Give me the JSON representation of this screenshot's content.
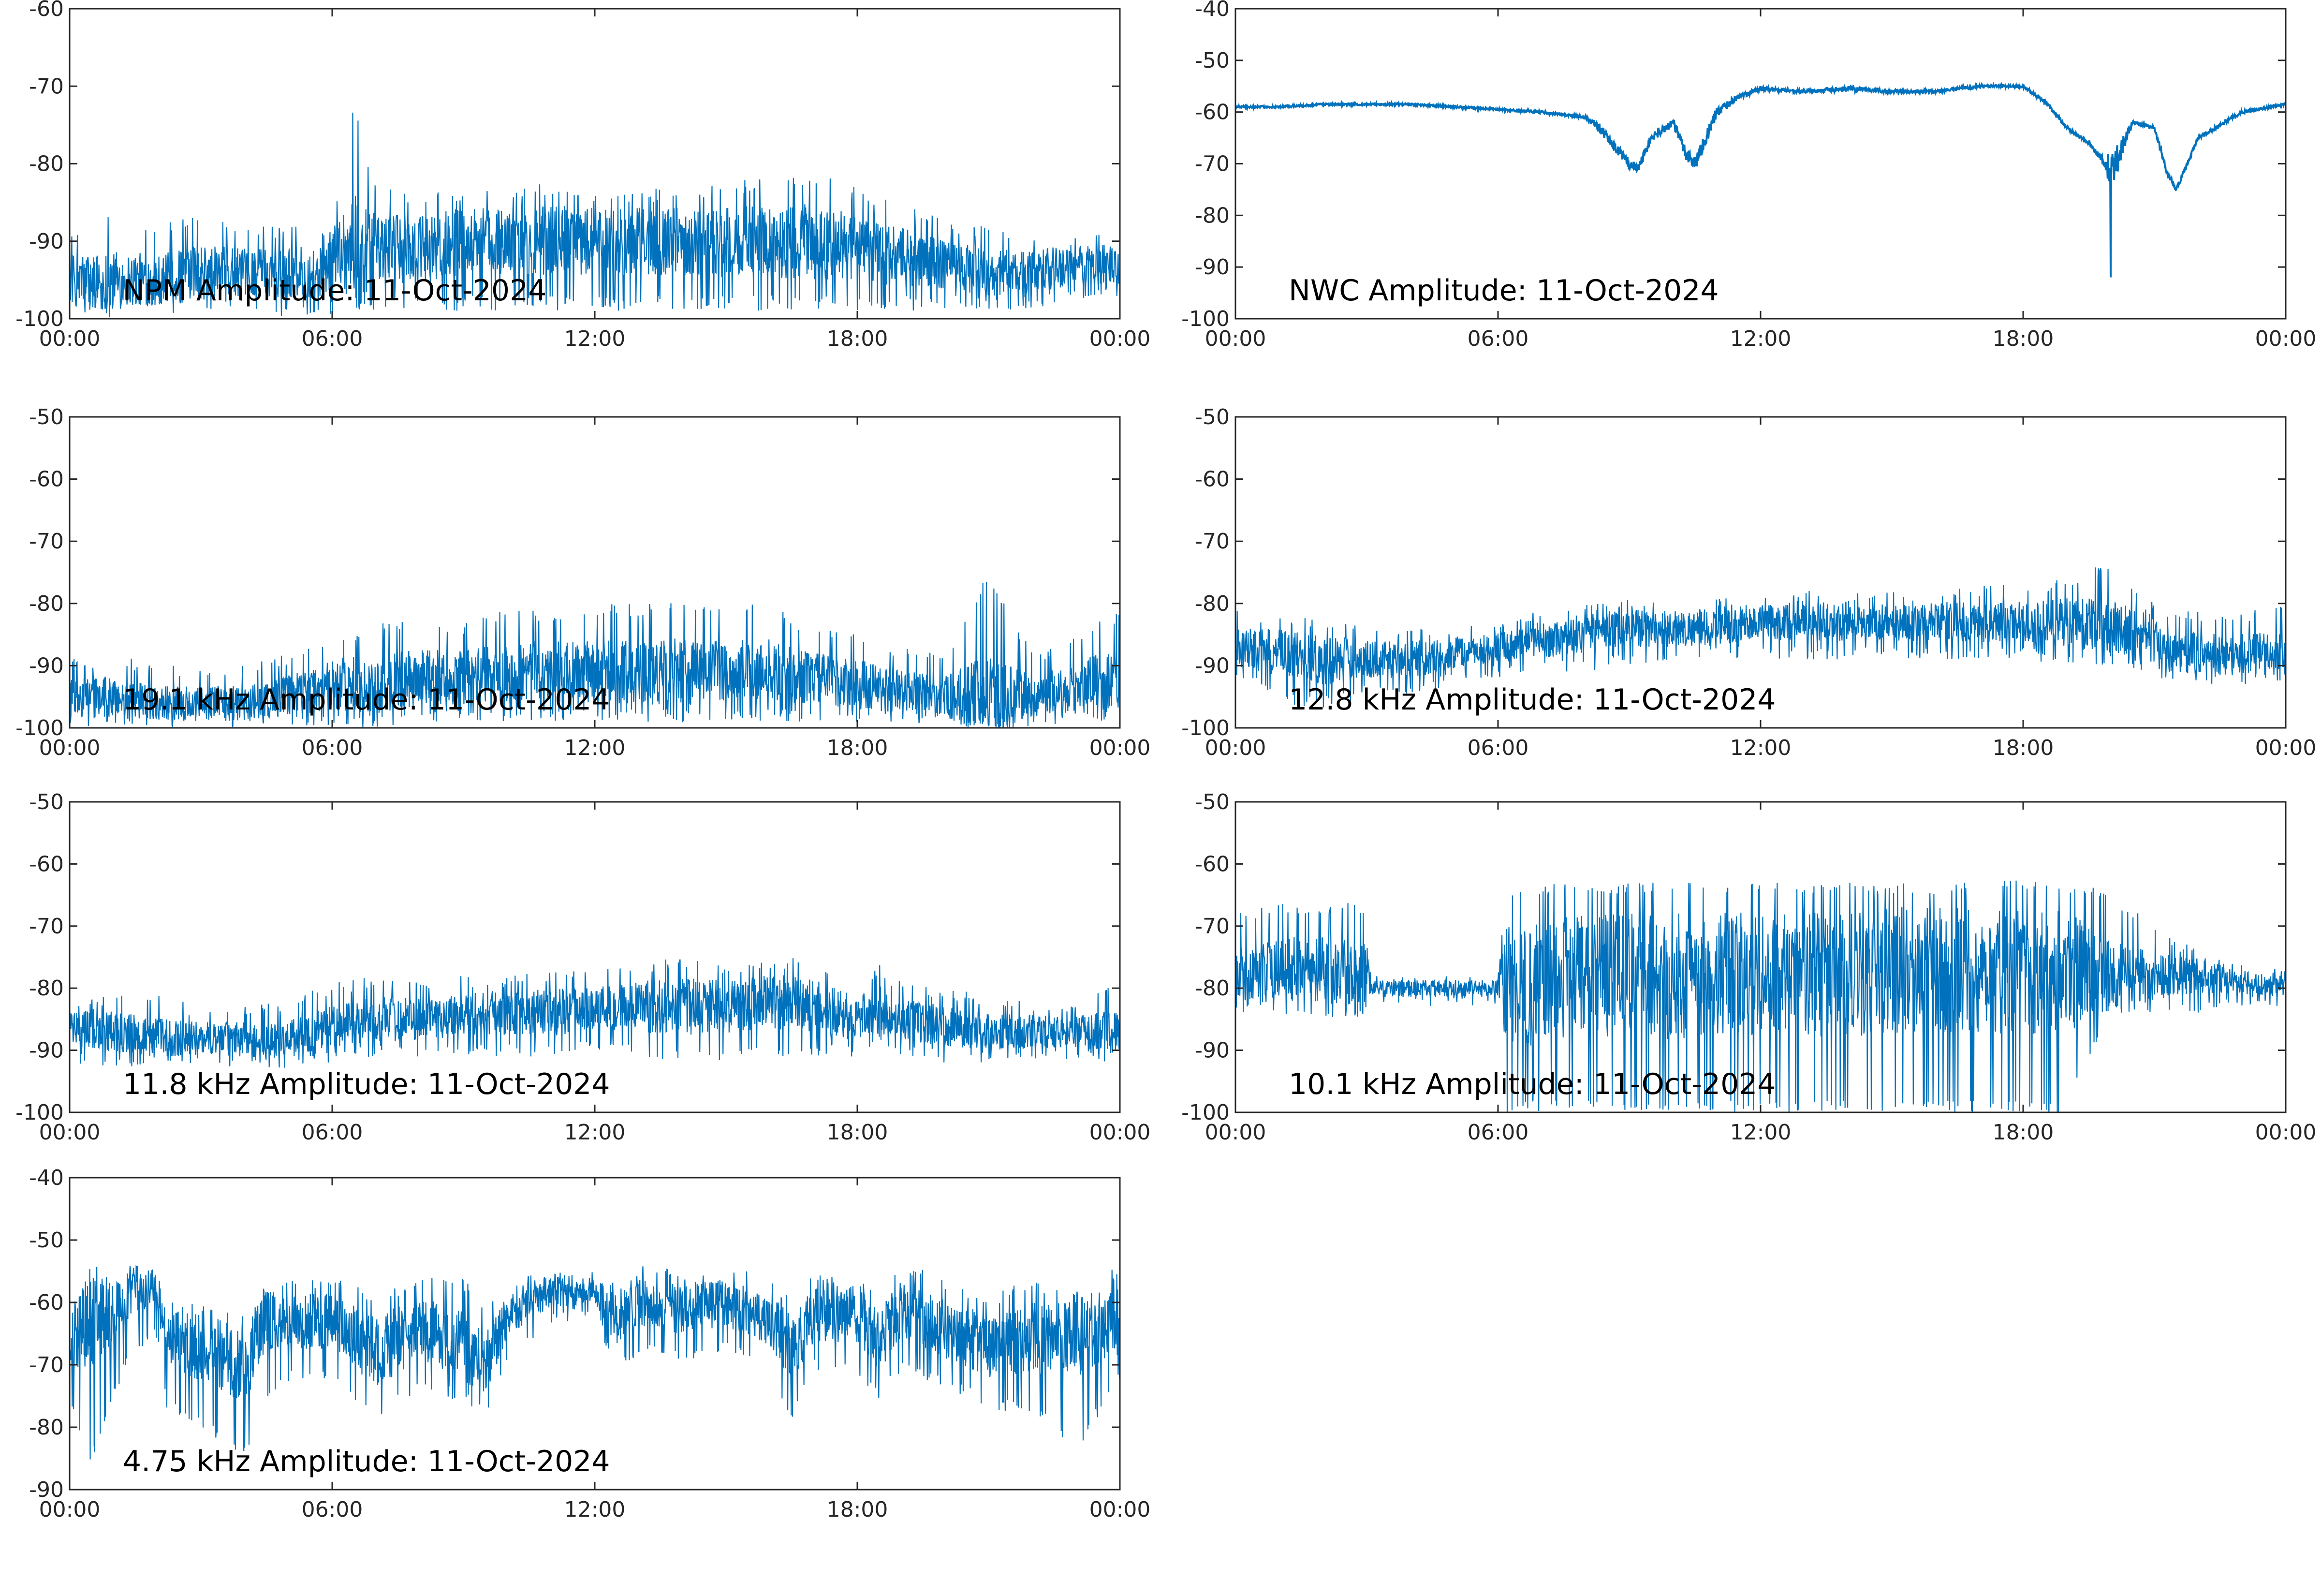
{
  "figure": {
    "line_color": "#0072bd",
    "axis_color": "#262626",
    "background": "#ffffff"
  },
  "chart_data": [
    {
      "type": "line",
      "id": "npm",
      "title": "NPM Amplitude: 11-Oct-2024",
      "xlabel": "",
      "ylabel": "",
      "x_ticks": [
        "00:00",
        "06:00",
        "12:00",
        "18:00",
        "00:00"
      ],
      "xlim_hours": [
        0,
        24
      ],
      "ylim": [
        -100,
        -60
      ],
      "y_ticks": [
        -100,
        -90,
        -80,
        -70,
        -60
      ],
      "grid": false,
      "series": [
        {
          "x_hours": [
            0,
            1,
            2,
            3,
            4,
            5,
            5.8,
            6.1,
            6.5,
            7,
            8,
            9,
            10,
            11,
            12,
            13,
            14,
            15,
            16,
            17,
            18,
            19,
            20,
            21,
            22,
            23,
            24
          ],
          "mean": [
            -95,
            -95,
            -95,
            -94,
            -94,
            -94,
            -94,
            -91,
            -91,
            -91,
            -91,
            -90,
            -90,
            -90,
            -90,
            -90,
            -90,
            -90,
            -90,
            -90,
            -91,
            -92,
            -93,
            -94,
            -94,
            -93,
            -93
          ],
          "high": [
            -88,
            -86,
            -88,
            -86,
            -88,
            -88,
            -88,
            -84,
            -72,
            -83,
            -83,
            -83,
            -83,
            -82,
            -83,
            -83,
            -83,
            -82,
            -82,
            -81,
            -83,
            -85,
            -87,
            -88,
            -89,
            -88,
            -89
          ],
          "low": [
            -100,
            -100,
            -100,
            -99,
            -99,
            -100,
            -100,
            -99,
            -99,
            -99,
            -99,
            -99,
            -99,
            -99,
            -99,
            -99,
            -99,
            -99,
            -99,
            -99,
            -99,
            -99,
            -99,
            -99,
            -99,
            -98,
            -98
          ]
        }
      ]
    },
    {
      "type": "line",
      "id": "nwc",
      "title": "NWC Amplitude: 11-Oct-2024",
      "xlabel": "",
      "ylabel": "",
      "x_ticks": [
        "00:00",
        "06:00",
        "12:00",
        "18:00",
        "00:00"
      ],
      "xlim_hours": [
        0,
        24
      ],
      "ylim": [
        -100,
        -40
      ],
      "y_ticks": [
        -100,
        -90,
        -80,
        -70,
        -60,
        -50,
        -40
      ],
      "grid": false,
      "series": [
        {
          "x_hours": [
            0,
            1,
            2,
            3,
            4,
            5,
            6,
            7,
            7.5,
            8,
            8.3,
            8.6,
            9,
            9.2,
            9.5,
            10,
            10.3,
            10.5,
            11,
            11.5,
            12,
            13,
            14,
            15,
            16,
            17,
            18,
            18.5,
            19,
            19.5,
            19.8,
            20,
            20.5,
            21,
            21.3,
            21.5,
            22,
            23,
            24
          ],
          "mean": [
            -59,
            -59,
            -58.5,
            -58.5,
            -58.5,
            -59,
            -59.5,
            -60,
            -60.5,
            -61,
            -63,
            -66,
            -70,
            -71,
            -65,
            -62,
            -68,
            -70,
            -60,
            -57,
            -55.5,
            -56,
            -55.5,
            -56,
            -56,
            -55,
            -55,
            -58,
            -63,
            -66,
            -69,
            -72,
            -62,
            -63,
            -72,
            -75,
            -65,
            -60,
            -58.5
          ],
          "high": [
            -58.5,
            -58.5,
            -58,
            -58,
            -58,
            -58.5,
            -59,
            -59.5,
            -60,
            -60,
            -61,
            -63,
            -66,
            -67,
            -62,
            -59,
            -63,
            -64,
            -57,
            -55,
            -54.5,
            -55,
            -54,
            -55,
            -55,
            -54.5,
            -54.5,
            -57,
            -62,
            -65,
            -67,
            -69,
            -61,
            -62,
            -70,
            -73,
            -64,
            -59,
            -58
          ],
          "low": [
            -59.5,
            -59.5,
            -59,
            -59,
            -59,
            -59.5,
            -60,
            -61,
            -61,
            -62,
            -66,
            -68,
            -72,
            -72,
            -67,
            -64,
            -71,
            -72,
            -63,
            -58,
            -57,
            -57,
            -57,
            -57,
            -57,
            -56,
            -56,
            -59,
            -64,
            -67,
            -71,
            -92,
            -63,
            -64,
            -74,
            -76,
            -66,
            -61,
            -59
          ]
        }
      ]
    },
    {
      "type": "line",
      "id": "khz191",
      "title": "19.1 kHz Amplitude: 11-Oct-2024",
      "xlabel": "",
      "ylabel": "",
      "x_ticks": [
        "00:00",
        "06:00",
        "12:00",
        "18:00",
        "00:00"
      ],
      "xlim_hours": [
        0,
        24
      ],
      "ylim": [
        -100,
        -50
      ],
      "y_ticks": [
        -100,
        -90,
        -80,
        -70,
        -60,
        -50
      ],
      "grid": false,
      "series": [
        {
          "x_hours": [
            0,
            1,
            2,
            3,
            4,
            5,
            6,
            7,
            8,
            9,
            10,
            11,
            12,
            13,
            14,
            15,
            16,
            17,
            18,
            19,
            20,
            21,
            22,
            23,
            24
          ],
          "mean": [
            -95,
            -95,
            -96,
            -96,
            -96,
            -95,
            -93,
            -93,
            -92,
            -92,
            -91,
            -91,
            -91,
            -91,
            -91,
            -91,
            -91,
            -92,
            -93,
            -94,
            -95,
            -95,
            -95,
            -93,
            -92
          ],
          "high": [
            -89,
            -88,
            -90,
            -90,
            -90,
            -88,
            -85,
            -83,
            -82,
            -83,
            -81,
            -81,
            -80,
            -80,
            -79,
            -80,
            -80,
            -84,
            -84,
            -87,
            -88,
            -75,
            -88,
            -85,
            -81
          ],
          "low": [
            -100,
            -100,
            -100,
            -100,
            -100,
            -100,
            -100,
            -100,
            -99,
            -99,
            -99,
            -99,
            -99,
            -99,
            -99,
            -99,
            -99,
            -99,
            -99,
            -99,
            -100,
            -100,
            -100,
            -99,
            -99
          ]
        }
      ]
    },
    {
      "type": "line",
      "id": "khz128",
      "title": "12.8 kHz Amplitude: 11-Oct-2024",
      "xlabel": "",
      "ylabel": "",
      "x_ticks": [
        "00:00",
        "06:00",
        "12:00",
        "18:00",
        "00:00"
      ],
      "xlim_hours": [
        0,
        24
      ],
      "ylim": [
        -100,
        -50
      ],
      "y_ticks": [
        -100,
        -90,
        -80,
        -70,
        -60,
        -50
      ],
      "grid": false,
      "series": [
        {
          "x_hours": [
            0,
            1,
            2,
            3,
            4,
            5,
            6,
            7,
            8,
            9,
            10,
            11,
            12,
            13,
            14,
            15,
            16,
            17,
            18,
            19,
            20,
            21,
            21.2,
            22,
            23,
            24
          ],
          "mean": [
            -87,
            -88,
            -89,
            -89,
            -89,
            -88,
            -87,
            -86,
            -85,
            -84,
            -84,
            -84,
            -83,
            -83,
            -83,
            -83,
            -83,
            -83,
            -83,
            -83,
            -84,
            -84,
            -88,
            -88,
            -88,
            -88
          ],
          "high": [
            -81,
            -82,
            -82,
            -84,
            -84,
            -84,
            -83,
            -81,
            -80,
            -79,
            -79,
            -79,
            -79,
            -78,
            -78,
            -78,
            -78,
            -77,
            -77,
            -76,
            -73,
            -79,
            -81,
            -81,
            -81,
            -80
          ],
          "low": [
            -92,
            -96,
            -97,
            -95,
            -95,
            -93,
            -92,
            -91,
            -91,
            -90,
            -90,
            -89,
            -89,
            -89,
            -89,
            -89,
            -89,
            -89,
            -89,
            -90,
            -90,
            -91,
            -93,
            -93,
            -93,
            -93
          ]
        }
      ]
    },
    {
      "type": "line",
      "id": "khz118",
      "title": "11.8 kHz Amplitude: 11-Oct-2024",
      "xlabel": "",
      "ylabel": "",
      "x_ticks": [
        "00:00",
        "06:00",
        "12:00",
        "18:00",
        "00:00"
      ],
      "xlim_hours": [
        0,
        24
      ],
      "ylim": [
        -100,
        -50
      ],
      "y_ticks": [
        -100,
        -90,
        -80,
        -70,
        -60,
        -50
      ],
      "grid": false,
      "series": [
        {
          "x_hours": [
            0,
            1,
            2,
            3,
            4,
            5,
            6,
            7,
            8,
            9,
            10,
            11,
            12,
            13,
            14,
            15,
            16,
            17,
            18,
            18.5,
            19,
            20,
            21,
            22,
            23,
            24
          ],
          "mean": [
            -86,
            -87,
            -88,
            -88,
            -88,
            -88,
            -86,
            -85,
            -85,
            -84,
            -84,
            -84,
            -83,
            -83,
            -83,
            -83,
            -82,
            -83,
            -85,
            -83,
            -85,
            -86,
            -87,
            -87,
            -87,
            -87
          ],
          "high": [
            -81,
            -81,
            -81,
            -83,
            -83,
            -82,
            -79,
            -78,
            -78,
            -78,
            -78,
            -77,
            -77,
            -76,
            -75,
            -76,
            -75,
            -75,
            -78,
            -76,
            -79,
            -80,
            -81,
            -82,
            -83,
            -78
          ],
          "low": [
            -92,
            -93,
            -93,
            -92,
            -93,
            -93,
            -92,
            -91,
            -91,
            -91,
            -91,
            -91,
            -90,
            -91,
            -92,
            -92,
            -91,
            -91,
            -91,
            -89,
            -91,
            -92,
            -92,
            -92,
            -92,
            -92
          ]
        }
      ]
    },
    {
      "type": "line",
      "id": "khz101",
      "title": "10.1 kHz Amplitude: 11-Oct-2024",
      "xlabel": "",
      "ylabel": "",
      "x_ticks": [
        "00:00",
        "06:00",
        "12:00",
        "18:00",
        "00:00"
      ],
      "xlim_hours": [
        0,
        24
      ],
      "ylim": [
        -100,
        -50
      ],
      "y_ticks": [
        -100,
        -90,
        -80,
        -70,
        -60,
        -50
      ],
      "grid": false,
      "series": [
        {
          "x_hours": [
            0,
            1,
            2,
            3,
            3.1,
            4,
            5,
            6,
            6.1,
            7,
            8,
            9,
            10,
            11,
            12,
            13,
            14,
            15,
            16,
            17,
            18,
            19,
            20,
            21,
            22,
            23,
            24
          ],
          "mean": [
            -78,
            -77,
            -77,
            -78,
            -80,
            -80,
            -80,
            -80,
            -80,
            -79,
            -78,
            -78,
            -78,
            -78,
            -78,
            -78,
            -78,
            -77,
            -77,
            -77,
            -77,
            -77,
            -78,
            -78,
            -78,
            -79,
            -80
          ],
          "high": [
            -68,
            -66,
            -66,
            -66,
            -78,
            -78,
            -78,
            -78,
            -65,
            -63,
            -63,
            -63,
            -63,
            -63,
            -63,
            -63,
            -63,
            -63,
            -63,
            -62,
            -62,
            -63,
            -64,
            -70,
            -74,
            -76,
            -77
          ],
          "low": [
            -84,
            -85,
            -85,
            -85,
            -82,
            -83,
            -83,
            -83,
            -100,
            -100,
            -100,
            -100,
            -100,
            -100,
            -100,
            -100,
            -100,
            -100,
            -100,
            -100,
            -100,
            -100,
            -84,
            -84,
            -84,
            -83,
            -83
          ]
        }
      ]
    },
    {
      "type": "line",
      "id": "khz475",
      "title": "4.75 kHz Amplitude: 11-Oct-2024",
      "xlabel": "",
      "ylabel": "",
      "x_ticks": [
        "00:00",
        "06:00",
        "12:00",
        "18:00",
        "00:00"
      ],
      "xlim_hours": [
        0,
        24
      ],
      "ylim": [
        -90,
        -40
      ],
      "y_ticks": [
        -90,
        -80,
        -70,
        -60,
        -50,
        -40
      ],
      "grid": false,
      "series": [
        {
          "x_hours": [
            0,
            0.5,
            1,
            1.5,
            2,
            2.2,
            3,
            4,
            4.5,
            5,
            6,
            7,
            8,
            9,
            9.5,
            10,
            11,
            11.5,
            12,
            12.5,
            13,
            14,
            15,
            16,
            16.5,
            17,
            18,
            18.5,
            19,
            20,
            21,
            22,
            23,
            24
          ],
          "mean": [
            -66,
            -62,
            -61,
            -58,
            -58,
            -66,
            -67,
            -70,
            -63,
            -63,
            -63,
            -68,
            -64,
            -67,
            -70,
            -62,
            -58,
            -58,
            -58,
            -63,
            -60,
            -61,
            -60,
            -63,
            -67,
            -62,
            -62,
            -66,
            -61,
            -64,
            -67,
            -66,
            -65,
            -63
          ],
          "high": [
            -58,
            -56,
            -56,
            -53,
            -54,
            -60,
            -60,
            -61,
            -57,
            -56,
            -56,
            -58,
            -56,
            -56,
            -60,
            -57,
            -54,
            -54,
            -55,
            -57,
            -54,
            -55,
            -54,
            -56,
            -59,
            -55,
            -56,
            -58,
            -53,
            -56,
            -59,
            -56,
            -58,
            -54
          ],
          "low": [
            -77,
            -86,
            -75,
            -68,
            -66,
            -77,
            -80,
            -85,
            -76,
            -73,
            -72,
            -79,
            -74,
            -76,
            -79,
            -70,
            -64,
            -63,
            -62,
            -72,
            -68,
            -70,
            -68,
            -70,
            -80,
            -71,
            -72,
            -76,
            -71,
            -74,
            -77,
            -78,
            -84,
            -73
          ]
        }
      ]
    }
  ]
}
